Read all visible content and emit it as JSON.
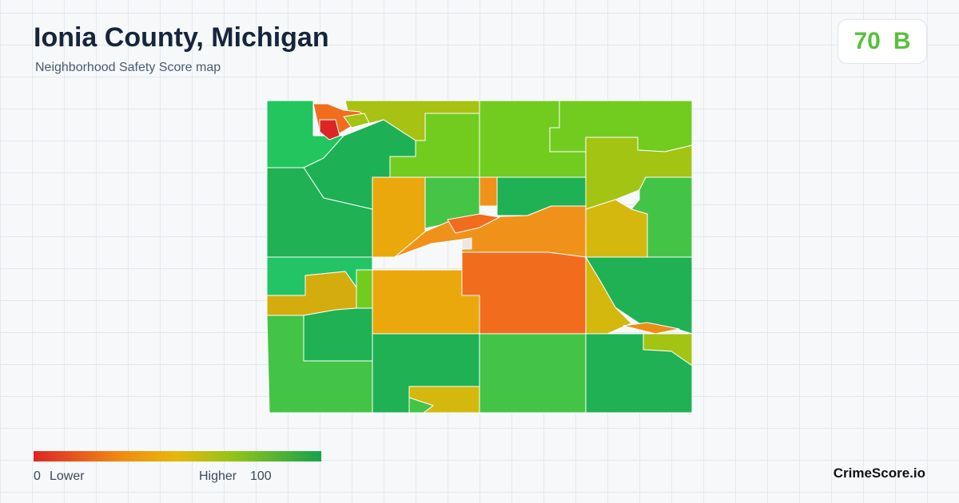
{
  "header": {
    "title": "Ionia County, Michigan",
    "subtitle": "Neighborhood Safety Score map"
  },
  "score": {
    "value": 70,
    "grade": "B"
  },
  "legend": {
    "min_value": 0,
    "min_label": "Lower",
    "max_label": "Higher",
    "max_value": 100
  },
  "brand": "CrimeScore.io"
}
